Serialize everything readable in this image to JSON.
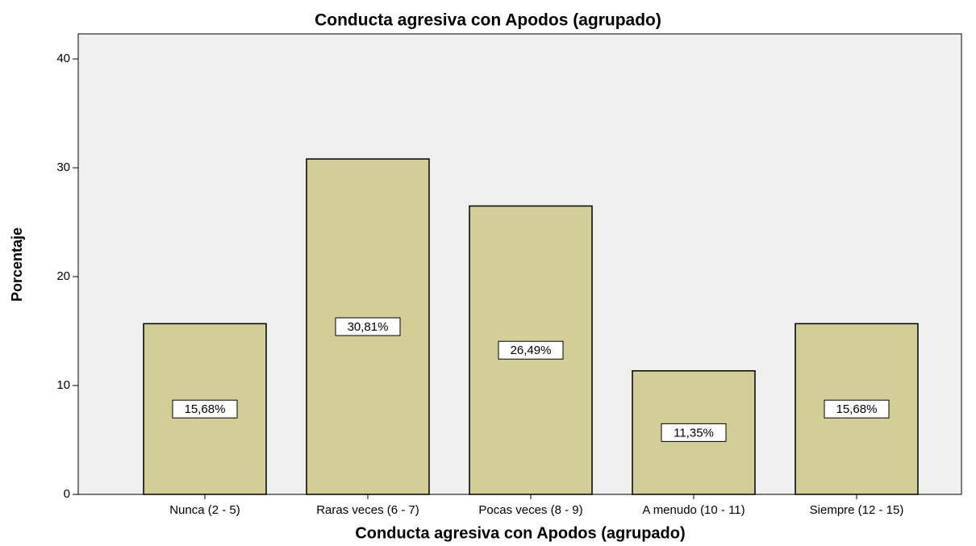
{
  "chart_data": {
    "type": "bar",
    "title": "Conducta agresiva con Apodos (agrupado)",
    "xlabel": "Conducta agresiva con Apodos (agrupado)",
    "ylabel": "Porcentaje",
    "categories": [
      "Nunca (2 - 5)",
      "Raras veces (6 - 7)",
      "Pocas veces (8 - 9)",
      "A menudo (10 - 11)",
      "Siempre (12 - 15)"
    ],
    "values": [
      15.68,
      30.81,
      26.49,
      11.35,
      15.68
    ],
    "value_labels": [
      "15,68%",
      "30,81%",
      "26,49%",
      "11,35%",
      "15,68%"
    ],
    "color": "#d3ce97",
    "ylim": [
      0,
      42.3
    ],
    "yticks": [
      0,
      10,
      20,
      30,
      40
    ],
    "grid": false
  }
}
